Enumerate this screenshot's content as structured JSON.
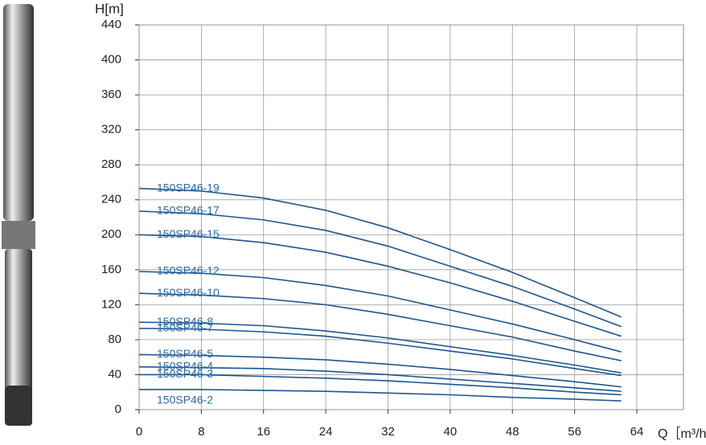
{
  "chart_data": {
    "type": "line",
    "y_label": "H[m]",
    "x_label": "Q［m³/h］",
    "x": [
      0,
      8,
      16,
      24,
      32,
      40,
      48,
      56,
      62
    ],
    "xlim": [
      0,
      70
    ],
    "xticks": [
      0,
      8,
      16,
      24,
      32,
      40,
      48,
      56,
      64
    ],
    "ylim": [
      0,
      440
    ],
    "yticks": [
      0,
      40,
      80,
      120,
      160,
      200,
      240,
      280,
      320,
      360,
      400,
      440
    ],
    "grid": true,
    "series": [
      {
        "name": "150SP46-19",
        "color": "#1c5590",
        "values": [
          253,
          250,
          242,
          228,
          208,
          183,
          157,
          128,
          106
        ]
      },
      {
        "name": "150SP46-17",
        "color": "#1c5590",
        "values": [
          227,
          224,
          217,
          205,
          187,
          164,
          141,
          115,
          95
        ]
      },
      {
        "name": "150SP46-15",
        "color": "#1c5590",
        "values": [
          200,
          198,
          191,
          180,
          164,
          145,
          124,
          101,
          84
        ]
      },
      {
        "name": "150SP46-12",
        "color": "#1c5590",
        "values": [
          158,
          156,
          151,
          142,
          130,
          114,
          98,
          80,
          66
        ]
      },
      {
        "name": "150SP46-10",
        "color": "#1c5590",
        "values": [
          133,
          131,
          127,
          120,
          109,
          96,
          83,
          67,
          56
        ]
      },
      {
        "name": "150SP46-8",
        "color": "#1c5590",
        "values": [
          100,
          99,
          96,
          90,
          82,
          72,
          62,
          51,
          42
        ]
      },
      {
        "name": "150SP46-7",
        "color": "#1c5590",
        "values": [
          93,
          92,
          89,
          84,
          76,
          67,
          58,
          47,
          39
        ]
      },
      {
        "name": "150SP46-5",
        "color": "#1c5590",
        "values": [
          63,
          62,
          60,
          57,
          52,
          46,
          39,
          32,
          26
        ]
      },
      {
        "name": "150SP46-4",
        "color": "#1c5590",
        "values": [
          49,
          48,
          47,
          44,
          40,
          35,
          30,
          25,
          21
        ]
      },
      {
        "name": "150SP46-3",
        "color": "#1c5590",
        "values": [
          40,
          40,
          38,
          36,
          33,
          29,
          25,
          20,
          17
        ]
      },
      {
        "name": "150SP46-2",
        "color": "#1c5590",
        "values": [
          23,
          23,
          22,
          21,
          19,
          17,
          14,
          12,
          10
        ]
      }
    ]
  }
}
